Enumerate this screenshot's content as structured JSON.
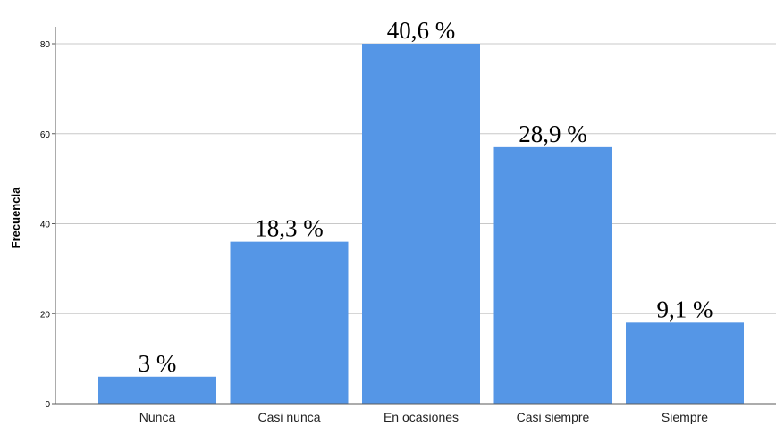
{
  "chart_data": {
    "type": "bar",
    "title": "",
    "xlabel": "",
    "ylabel": "Frecuencia",
    "ylim": [
      0,
      80
    ],
    "yticks": [
      0,
      20,
      40,
      60,
      80
    ],
    "grid": true,
    "legend": "none",
    "bar_color": "#5596e6",
    "categories": [
      "Nunca",
      "Casi nunca",
      "En ocasiones",
      "Casi siempre",
      "Siempre"
    ],
    "values": [
      6,
      36,
      80,
      57,
      18
    ],
    "data_labels": [
      "3 %",
      "18,3 %",
      "40,6 %",
      "28,9 %",
      "9,1 %"
    ]
  }
}
